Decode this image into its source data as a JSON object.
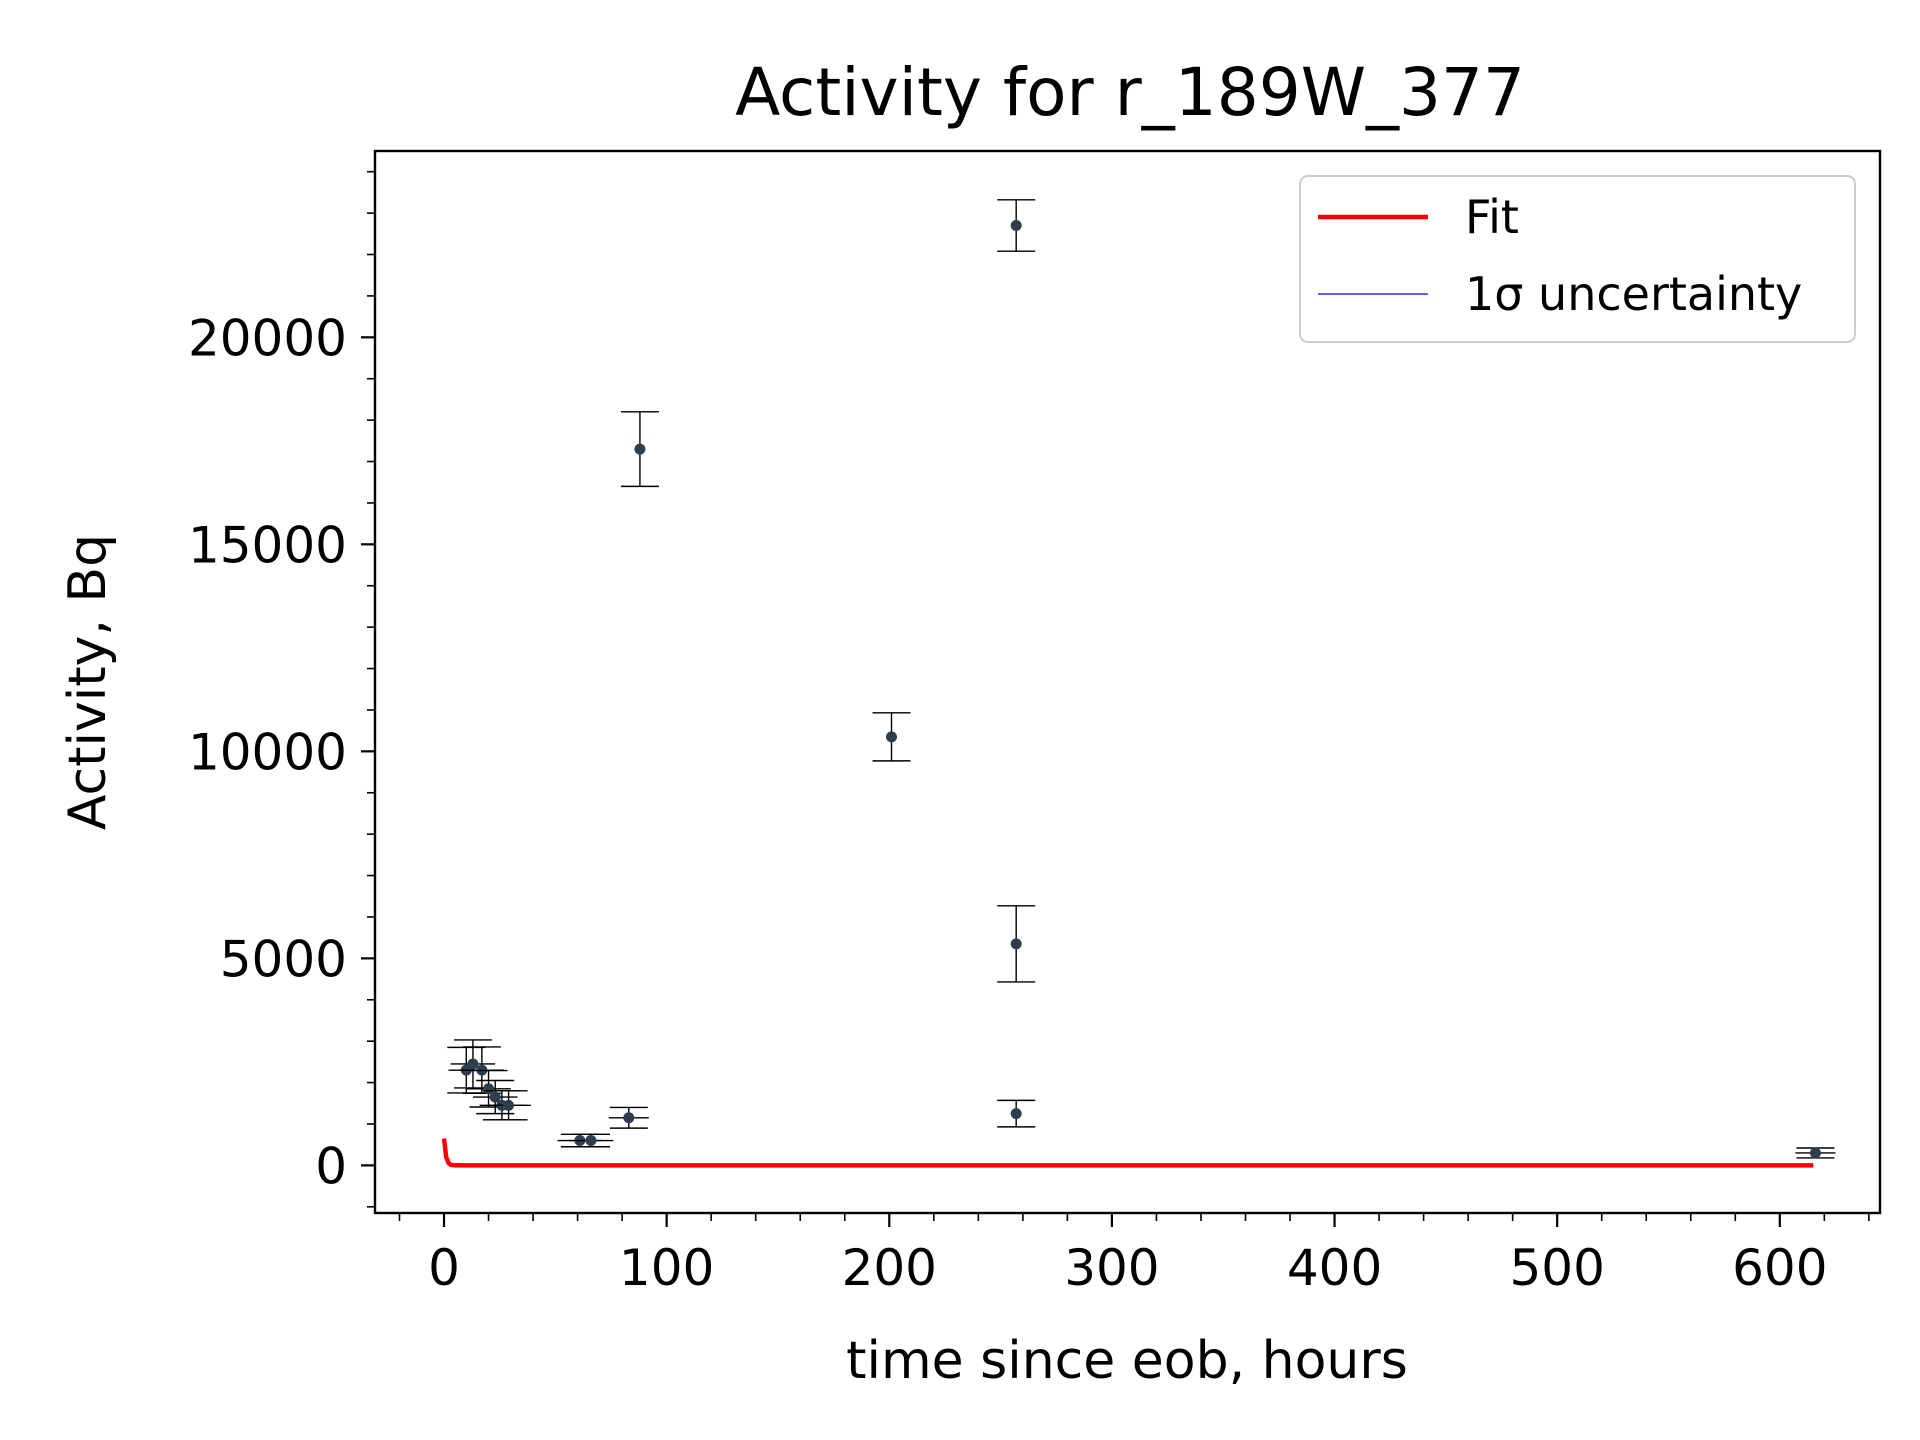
{
  "chart_data": {
    "type": "scatter",
    "title": "Activity for r_189W_377",
    "xlabel": "time since eob, hours",
    "ylabel": "Activity, Bq",
    "xlim": [
      -31,
      645
    ],
    "ylim": [
      -1150,
      24500
    ],
    "x_ticks": [
      0,
      100,
      200,
      300,
      400,
      500,
      600
    ],
    "x_tick_labels": [
      "0",
      "100",
      "200",
      "300",
      "400",
      "500",
      "600"
    ],
    "y_ticks": [
      0,
      5000,
      10000,
      15000,
      20000
    ],
    "y_tick_labels": [
      "0",
      "5000",
      "10000",
      "15000",
      "20000"
    ],
    "grid": false,
    "legend_position": "top-right",
    "legend": [
      {
        "label": "Fit",
        "color": "#ff0000",
        "style": "thick-line"
      },
      {
        "label": "1σ uncertainty",
        "color": "#0000ff",
        "style": "thin-line"
      }
    ],
    "marker_color": "#2f3e4e",
    "errorbar_color": "#000000",
    "points": [
      {
        "x": 10,
        "y": 2300,
        "yerr": 550,
        "xerr": 8
      },
      {
        "x": 13,
        "y": 2450,
        "yerr": 580,
        "xerr": 10
      },
      {
        "x": 17,
        "y": 2300,
        "yerr": 560,
        "xerr": 10
      },
      {
        "x": 20,
        "y": 1850,
        "yerr": 440,
        "xerr": 10
      },
      {
        "x": 23,
        "y": 1650,
        "yerr": 400,
        "xerr": 10
      },
      {
        "x": 26,
        "y": 1450,
        "yerr": 350,
        "xerr": 10
      },
      {
        "x": 29,
        "y": 1450,
        "yerr": 350,
        "xerr": 10
      },
      {
        "x": 61,
        "y": 600,
        "yerr": 150,
        "xerr": 10
      },
      {
        "x": 66,
        "y": 600,
        "yerr": 150,
        "xerr": 10
      },
      {
        "x": 83,
        "y": 1150,
        "yerr": 250,
        "xerr": 9
      },
      {
        "x": 88,
        "y": 17300,
        "yerr": 900,
        "xerr": 0
      },
      {
        "x": 201,
        "y": 10350,
        "yerr": 580,
        "xerr": 0
      },
      {
        "x": 257,
        "y": 22700,
        "yerr": 620,
        "xerr": 0
      },
      {
        "x": 257,
        "y": 5350,
        "yerr": 920,
        "xerr": 0
      },
      {
        "x": 257,
        "y": 1250,
        "yerr": 320,
        "xerr": 0
      },
      {
        "x": 616,
        "y": 300,
        "yerr": 120,
        "xerr": 9
      }
    ],
    "fit_curve": {
      "name": "Fit",
      "color": "#ff0000",
      "x": [
        0,
        0.5,
        1,
        2,
        3,
        5,
        10,
        100,
        300,
        500,
        615
      ],
      "y": [
        650,
        420,
        200,
        60,
        15,
        3,
        0,
        0,
        0,
        0,
        0
      ]
    }
  }
}
